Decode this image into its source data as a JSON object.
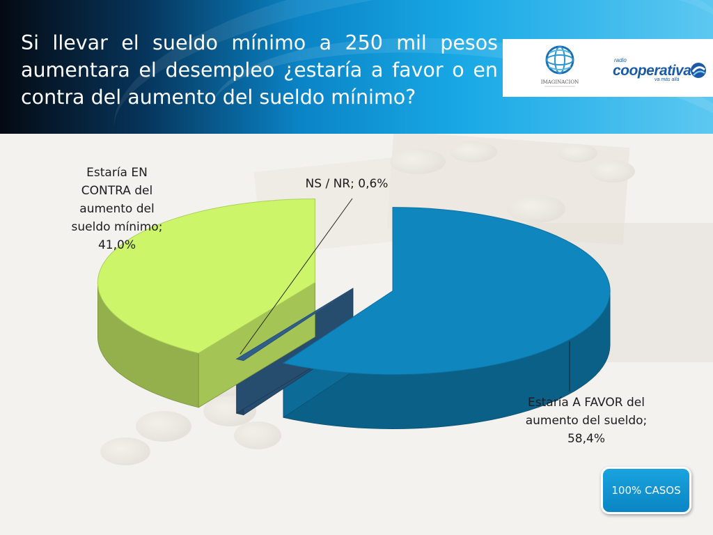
{
  "slide": {
    "question": "Si llevar el sueldo mínimo a 250 mil pesos aumentara el desempleo ¿estaría a favor o en contra del aumento del sueldo mínimo?",
    "badge": "100% CASOS"
  },
  "logos": {
    "imaginacion": "IMAGINACION",
    "cooperativa_top": "radio",
    "cooperativa_main": "cooperativa",
    "cooperativa_tag": "va más allá"
  },
  "colors": {
    "header_accent": "#0a84c6",
    "contra": "#cdf56a",
    "nsnr": "#2f5f8a",
    "favor": "#0f86bd",
    "badge": "#1399d4"
  },
  "chart_data": {
    "type": "pie",
    "style": "3d-exploded",
    "categories": [
      "Estaría A FAVOR del aumento del sueldo",
      "NS / NR",
      "Estaría EN CONTRA del aumento del sueldo mínimo"
    ],
    "values": [
      58.4,
      0.6,
      41.0
    ],
    "unit": "%",
    "labels": [
      "Estaría A FAVOR del aumento del sueldo; 58,4%",
      "NS / NR; 0,6%",
      "Estaría EN CONTRA del aumento del sueldo mínimo; 41,0%"
    ],
    "legend": "none"
  }
}
